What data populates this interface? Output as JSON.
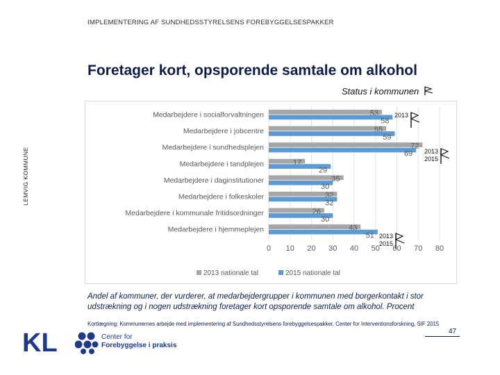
{
  "header": {
    "label": "IMPLEMENTERING AF SUNDHEDSSTYRELSENS FOREBYGGELSESPAKKER"
  },
  "title": "Foretager kort, opsporende samtale om alkohol",
  "status_label": "Status i kommunen",
  "side_label": "LEMVIG KOMMUNE",
  "chart_data": {
    "type": "bar",
    "orientation": "horizontal",
    "categories": [
      "Medarbejdere i socialforvaltningen",
      "Medarbejdere i jobcentre",
      "Medarbejdere i sundhedsplejen",
      "Medarbejdere i tandplejen",
      "Medarbejdere i daginstitutioner",
      "Medarbejdere i folkeskoler",
      "Medarbejdere i kommunale fritidsordninger",
      "Medarbejdere i hjemmeplejen"
    ],
    "series": [
      {
        "name": "2013 nationale tal",
        "color": "#a6a6a6",
        "values": [
          53,
          55,
          72,
          17,
          35,
          32,
          26,
          43
        ]
      },
      {
        "name": "2015 nationale tal",
        "color": "#5b9bd5",
        "values": [
          58,
          59,
          69,
          29,
          30,
          32,
          30,
          51
        ]
      }
    ],
    "xlim": [
      0,
      80
    ],
    "xticks": [
      0,
      10,
      20,
      30,
      40,
      50,
      60,
      70,
      80
    ],
    "legend_position": "bottom",
    "annotations": [
      {
        "category_index": 0,
        "text": "2013"
      },
      {
        "category_index": 2,
        "text": "2013\n2015"
      },
      {
        "category_index": 7,
        "text": "2013\n2015"
      }
    ]
  },
  "caption": "Andel af kommuner, der vurderer, at medarbejdergrupper i kommunen med borgerkontakt i stor udstrækning og i nogen udstrækning foretager kort opsporende samtale om alkohol. Procent",
  "source": "Kortlægning: Kommunernes arbejde med implementering af Sundhedsstyrelsens forebyggelsespakker, Center for Interventionsforskning, SIF 2015",
  "footer": {
    "logo_text": "KL",
    "partner_line1": "Center for",
    "partner_line2": "Forebyggelse i praksis",
    "page_number": "47"
  },
  "colors": {
    "brand": "#1e3a8a",
    "title": "#0d1d4a"
  }
}
